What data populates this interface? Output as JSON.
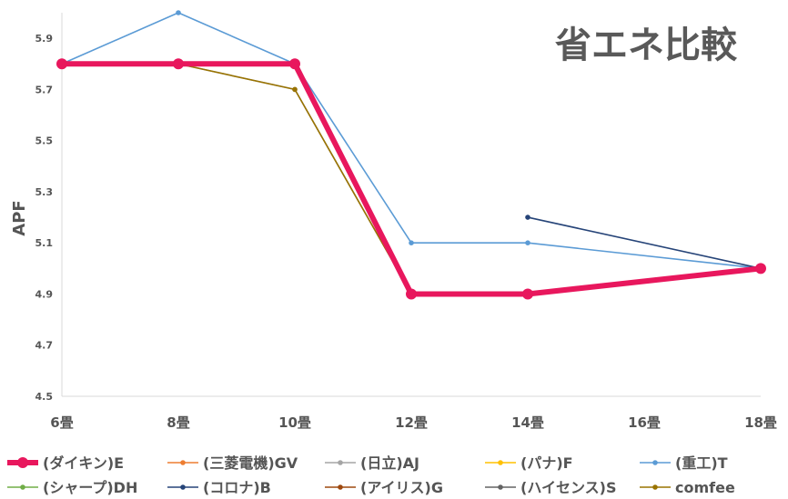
{
  "chart_data": {
    "type": "line",
    "title": "省エネ比較",
    "ylabel": "APF",
    "xlabel": "",
    "categories": [
      "6畳",
      "8畳",
      "10畳",
      "12畳",
      "14畳",
      "16畳",
      "18畳"
    ],
    "ylim": [
      4.5,
      6.0
    ],
    "yticks": [
      "4.5",
      "4.7",
      "4.9",
      "5.1",
      "5.3",
      "5.5",
      "5.7",
      "5.9"
    ],
    "legend_position": "bottom",
    "grid": false,
    "series": [
      {
        "name": "(ダイキン)E",
        "color": "#e8175d",
        "values": [
          5.8,
          5.8,
          5.8,
          4.9,
          4.9,
          null,
          5.0
        ]
      },
      {
        "name": "(三菱電機)GV",
        "color": "#ed7d31",
        "values": [
          5.8,
          5.8,
          5.8,
          4.9,
          4.9,
          null,
          5.0
        ]
      },
      {
        "name": "(日立)AJ",
        "color": "#a5a5a5",
        "values": [
          5.8,
          5.8,
          5.7,
          4.9,
          4.9,
          null,
          5.0
        ]
      },
      {
        "name": "(パナ)F",
        "color": "#ffc000",
        "values": [
          5.8,
          5.8,
          5.8,
          4.9,
          4.9,
          null,
          5.0
        ]
      },
      {
        "name": "(重工)T",
        "color": "#5b9bd5",
        "values": [
          5.8,
          6.0,
          5.8,
          5.1,
          5.1,
          null,
          5.0
        ]
      },
      {
        "name": "(シャープ)DH",
        "color": "#70ad47",
        "values": [
          5.8,
          5.8,
          5.8,
          4.9,
          4.9,
          null,
          5.0
        ]
      },
      {
        "name": "(コロナ)B",
        "color": "#264478",
        "values": [
          null,
          null,
          null,
          null,
          5.2,
          null,
          5.0
        ]
      },
      {
        "name": "(アイリス)G",
        "color": "#9e480e",
        "values": [
          5.8,
          5.8,
          5.8,
          4.9,
          4.9,
          null,
          5.0
        ]
      },
      {
        "name": "(ハイセンス)S",
        "color": "#636363",
        "values": [
          5.8,
          5.8,
          5.8,
          4.9,
          4.9,
          null,
          5.0
        ]
      },
      {
        "name": "comfee",
        "color": "#997300",
        "values": [
          5.8,
          5.8,
          5.7,
          4.9,
          4.9,
          null,
          5.0
        ]
      }
    ]
  }
}
